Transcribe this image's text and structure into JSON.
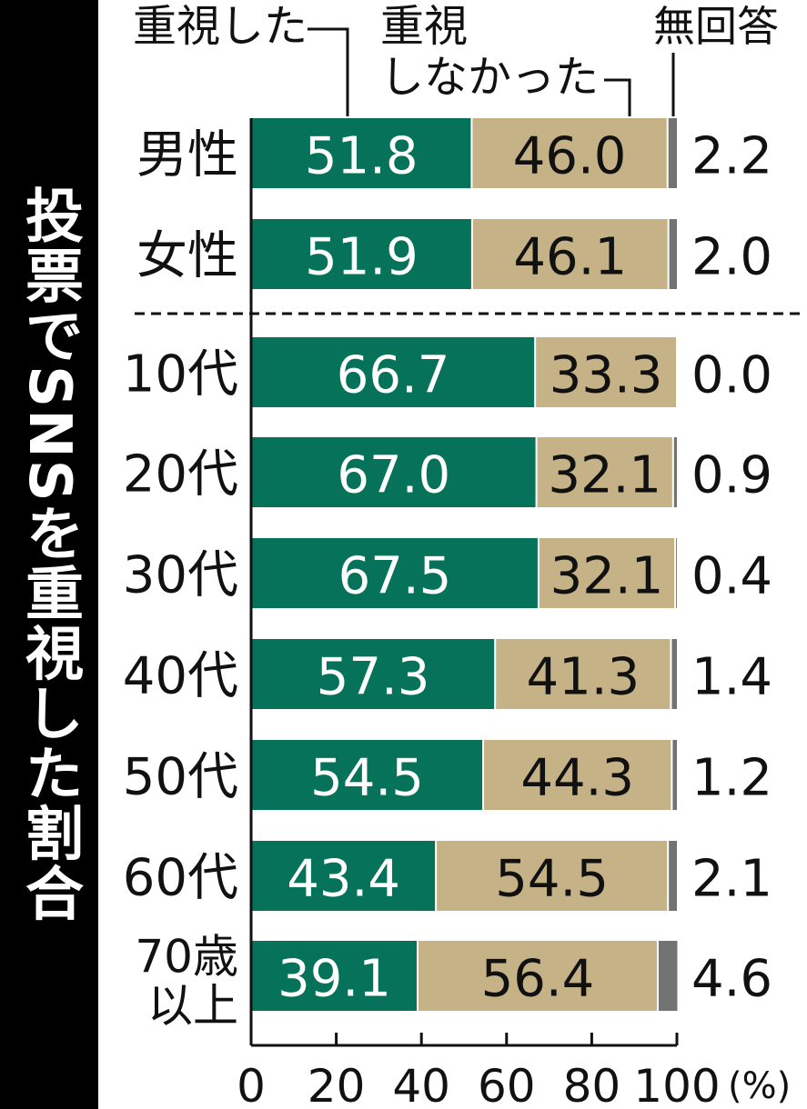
{
  "chart_data": {
    "type": "bar",
    "stacked": true,
    "orientation": "horizontal",
    "title": "投票でSNSを重視した割合",
    "legend": [
      {
        "name": "重視した",
        "color": "#067259"
      },
      {
        "name": "重視しなかった",
        "color": "#c5b287"
      },
      {
        "name": "無回答",
        "color": "#737373"
      }
    ],
    "legend_lines": {
      "first": "重視した",
      "second_line1": "重視",
      "second_line2": "しなかった",
      "third": "無回答"
    },
    "groups": [
      {
        "rows": [
          {
            "label": [
              "男性"
            ],
            "values": [
              51.8,
              46.0,
              2.2
            ],
            "labels": [
              "51.8",
              "46.0",
              "2.2"
            ]
          },
          {
            "label": [
              "女性"
            ],
            "values": [
              51.9,
              46.1,
              2.0
            ],
            "labels": [
              "51.9",
              "46.1",
              "2.0"
            ]
          }
        ]
      },
      {
        "rows": [
          {
            "label": [
              "10代"
            ],
            "values": [
              66.7,
              33.3,
              0.0
            ],
            "labels": [
              "66.7",
              "33.3",
              "0.0"
            ]
          },
          {
            "label": [
              "20代"
            ],
            "values": [
              67.0,
              32.1,
              0.9
            ],
            "labels": [
              "67.0",
              "32.1",
              "0.9"
            ]
          },
          {
            "label": [
              "30代"
            ],
            "values": [
              67.5,
              32.1,
              0.4
            ],
            "labels": [
              "67.5",
              "32.1",
              "0.4"
            ]
          },
          {
            "label": [
              "40代"
            ],
            "values": [
              57.3,
              41.3,
              1.4
            ],
            "labels": [
              "57.3",
              "41.3",
              "1.4"
            ]
          },
          {
            "label": [
              "50代"
            ],
            "values": [
              54.5,
              44.3,
              1.2
            ],
            "labels": [
              "54.5",
              "44.3",
              "1.2"
            ]
          },
          {
            "label": [
              "60代"
            ],
            "values": [
              43.4,
              54.5,
              2.1
            ],
            "labels": [
              "43.4",
              "54.5",
              "2.1"
            ]
          },
          {
            "label": [
              "70歳",
              "以上"
            ],
            "values": [
              39.1,
              56.4,
              4.6
            ],
            "labels": [
              "39.1",
              "56.4",
              "4.6"
            ]
          }
        ]
      }
    ],
    "xlim": [
      0,
      100
    ],
    "xticks": [
      0,
      20,
      40,
      60,
      80,
      100
    ],
    "xtick_labels": [
      "0",
      "20",
      "40",
      "60",
      "80",
      "100"
    ],
    "x_unit": "(%)"
  }
}
